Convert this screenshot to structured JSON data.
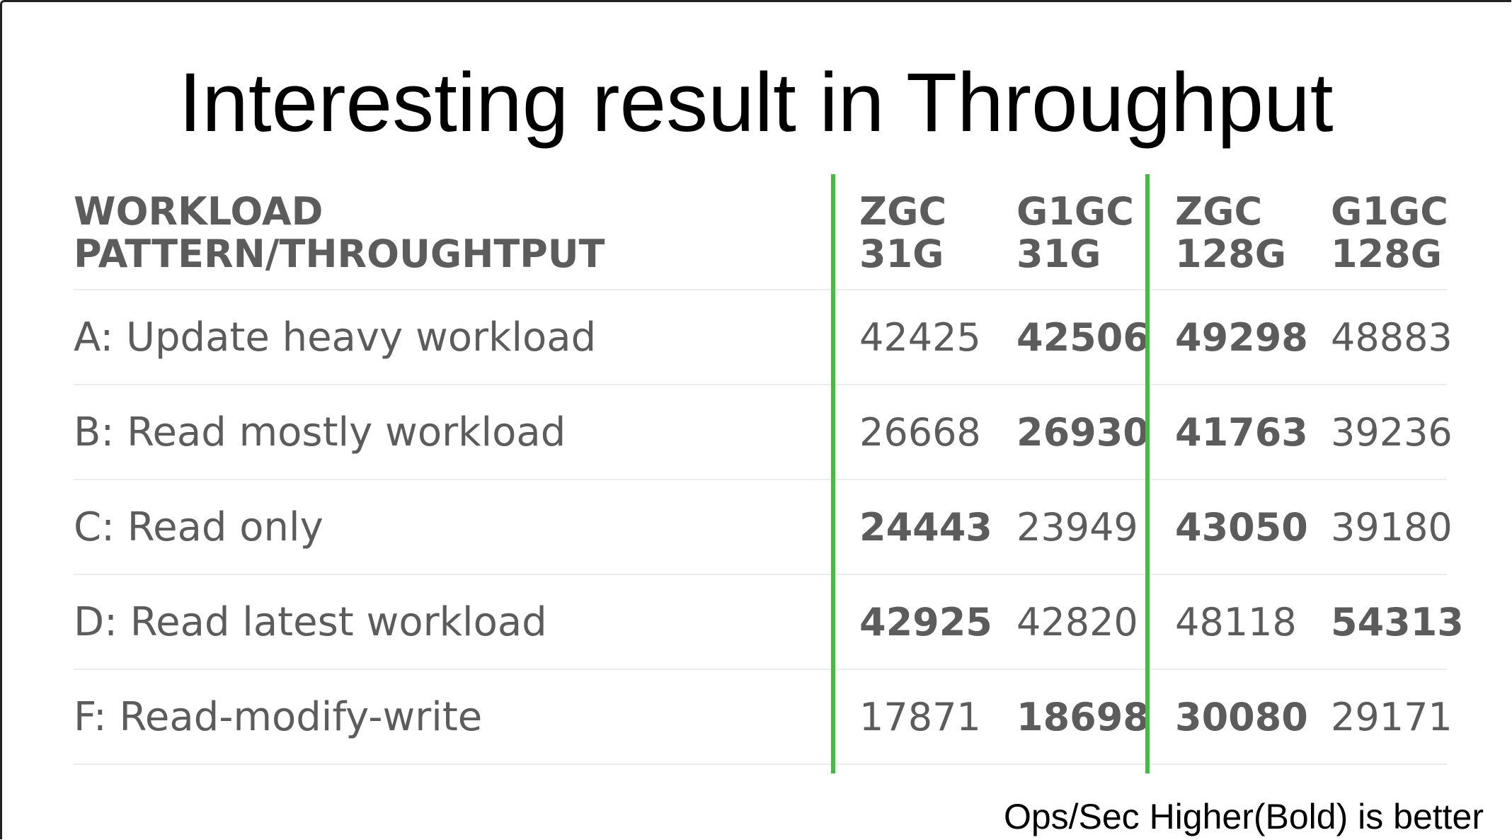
{
  "chart_data": {
    "type": "table",
    "title": "Interesting result in Throughput",
    "columns": [
      {
        "line1": "WORKLOAD",
        "line2": "PATTERN/THROUGHTPUT"
      },
      {
        "line1": "ZGC",
        "line2": "31G"
      },
      {
        "line1": "G1GC",
        "line2": "31G"
      },
      {
        "line1": "ZGC",
        "line2": "128G"
      },
      {
        "line1": "G1GC",
        "line2": "128G"
      }
    ],
    "rows": [
      {
        "label": "A: Update heavy workload",
        "values": [
          "42425",
          "42506",
          "49298",
          "48883"
        ],
        "bold": [
          false,
          true,
          true,
          false
        ]
      },
      {
        "label": "B: Read mostly workload",
        "values": [
          "26668",
          "26930",
          "41763",
          "39236"
        ],
        "bold": [
          false,
          true,
          true,
          false
        ]
      },
      {
        "label": "C: Read only",
        "values": [
          "24443",
          "23949",
          "43050",
          "39180"
        ],
        "bold": [
          true,
          false,
          true,
          false
        ]
      },
      {
        "label": "D: Read latest workload",
        "values": [
          "42925",
          "42820",
          "48118",
          "54313"
        ],
        "bold": [
          true,
          false,
          false,
          true
        ]
      },
      {
        "label": "F: Read-modify-write",
        "values": [
          "17871",
          "18698",
          "30080",
          "29171"
        ],
        "bold": [
          false,
          true,
          true,
          false
        ]
      }
    ],
    "footnote": "Ops/Sec Higher(Bold) is better",
    "colors": {
      "separator": "#3fbf3a",
      "text": "#5c5c5c"
    }
  }
}
